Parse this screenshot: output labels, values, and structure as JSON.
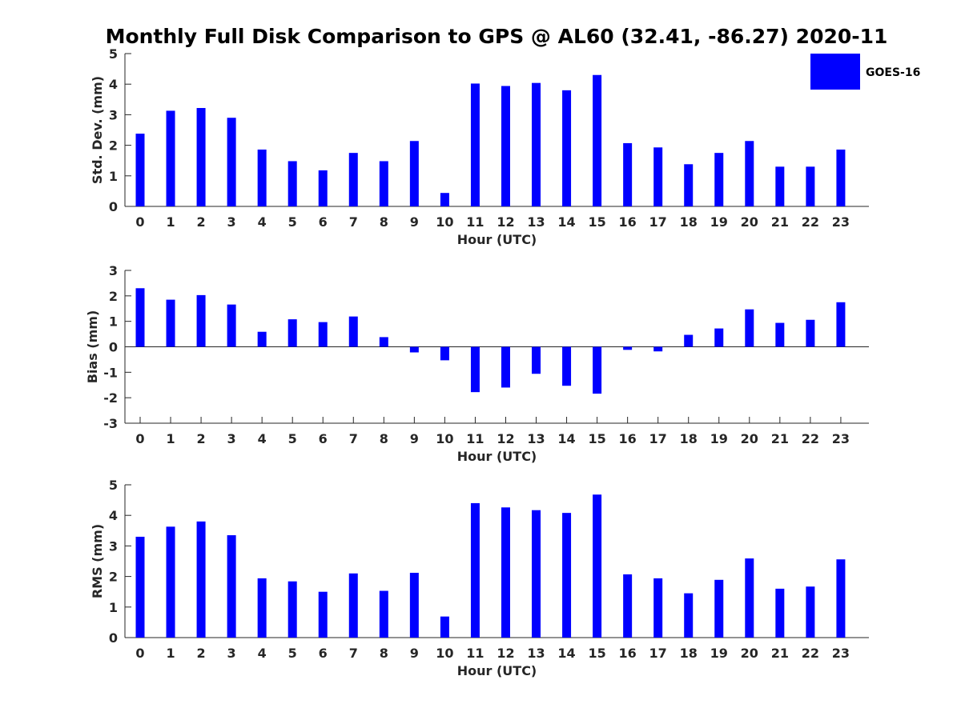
{
  "title": "Monthly Full Disk Comparison to GPS @ AL60 (32.41, -86.27) 2020-11",
  "legend": {
    "label": "GOES-16",
    "color": "#0000ff",
    "placement": "top-right"
  },
  "chart_data": [
    {
      "type": "bar",
      "xlabel": "Hour (UTC)",
      "ylabel": "Std. Dev. (mm)",
      "ylim": [
        0,
        5
      ],
      "yticks": [
        0,
        1,
        2,
        3,
        4,
        5
      ],
      "categories": [
        "0",
        "1",
        "2",
        "3",
        "4",
        "5",
        "6",
        "7",
        "8",
        "9",
        "10",
        "11",
        "12",
        "13",
        "14",
        "15",
        "16",
        "17",
        "18",
        "19",
        "20",
        "21",
        "22",
        "23"
      ],
      "series": [
        {
          "name": "GOES-16",
          "values": [
            2.38,
            3.13,
            3.22,
            2.9,
            1.86,
            1.48,
            1.18,
            1.75,
            1.48,
            2.14,
            0.44,
            4.02,
            3.94,
            4.04,
            3.8,
            4.3,
            2.07,
            1.93,
            1.38,
            1.75,
            2.14,
            1.3,
            1.3,
            1.86
          ]
        }
      ]
    },
    {
      "type": "bar",
      "xlabel": "Hour (UTC)",
      "ylabel": "Bias (mm)",
      "ylim": [
        -3,
        3
      ],
      "yticks": [
        -3,
        -2,
        -1,
        0,
        1,
        2,
        3
      ],
      "categories": [
        "0",
        "1",
        "2",
        "3",
        "4",
        "5",
        "6",
        "7",
        "8",
        "9",
        "10",
        "11",
        "12",
        "13",
        "14",
        "15",
        "16",
        "17",
        "18",
        "19",
        "20",
        "21",
        "22",
        "23"
      ],
      "series": [
        {
          "name": "GOES-16",
          "values": [
            2.3,
            1.85,
            2.03,
            1.66,
            0.59,
            1.08,
            0.97,
            1.19,
            0.38,
            -0.22,
            -0.53,
            -1.78,
            -1.6,
            -1.06,
            -1.53,
            -1.84,
            -0.12,
            -0.18,
            0.47,
            0.72,
            1.47,
            0.94,
            1.06,
            1.75
          ]
        }
      ]
    },
    {
      "type": "bar",
      "xlabel": "Hour (UTC)",
      "ylabel": "RMS (mm)",
      "ylim": [
        0,
        5
      ],
      "yticks": [
        0,
        1,
        2,
        3,
        4,
        5
      ],
      "categories": [
        "0",
        "1",
        "2",
        "3",
        "4",
        "5",
        "6",
        "7",
        "8",
        "9",
        "10",
        "11",
        "12",
        "13",
        "14",
        "15",
        "16",
        "17",
        "18",
        "19",
        "20",
        "21",
        "22",
        "23"
      ],
      "series": [
        {
          "name": "GOES-16",
          "values": [
            3.3,
            3.63,
            3.8,
            3.35,
            1.94,
            1.84,
            1.5,
            2.1,
            1.53,
            2.12,
            0.69,
            4.4,
            4.26,
            4.17,
            4.08,
            4.68,
            2.07,
            1.94,
            1.45,
            1.89,
            2.59,
            1.6,
            1.67,
            2.56
          ]
        }
      ]
    }
  ]
}
